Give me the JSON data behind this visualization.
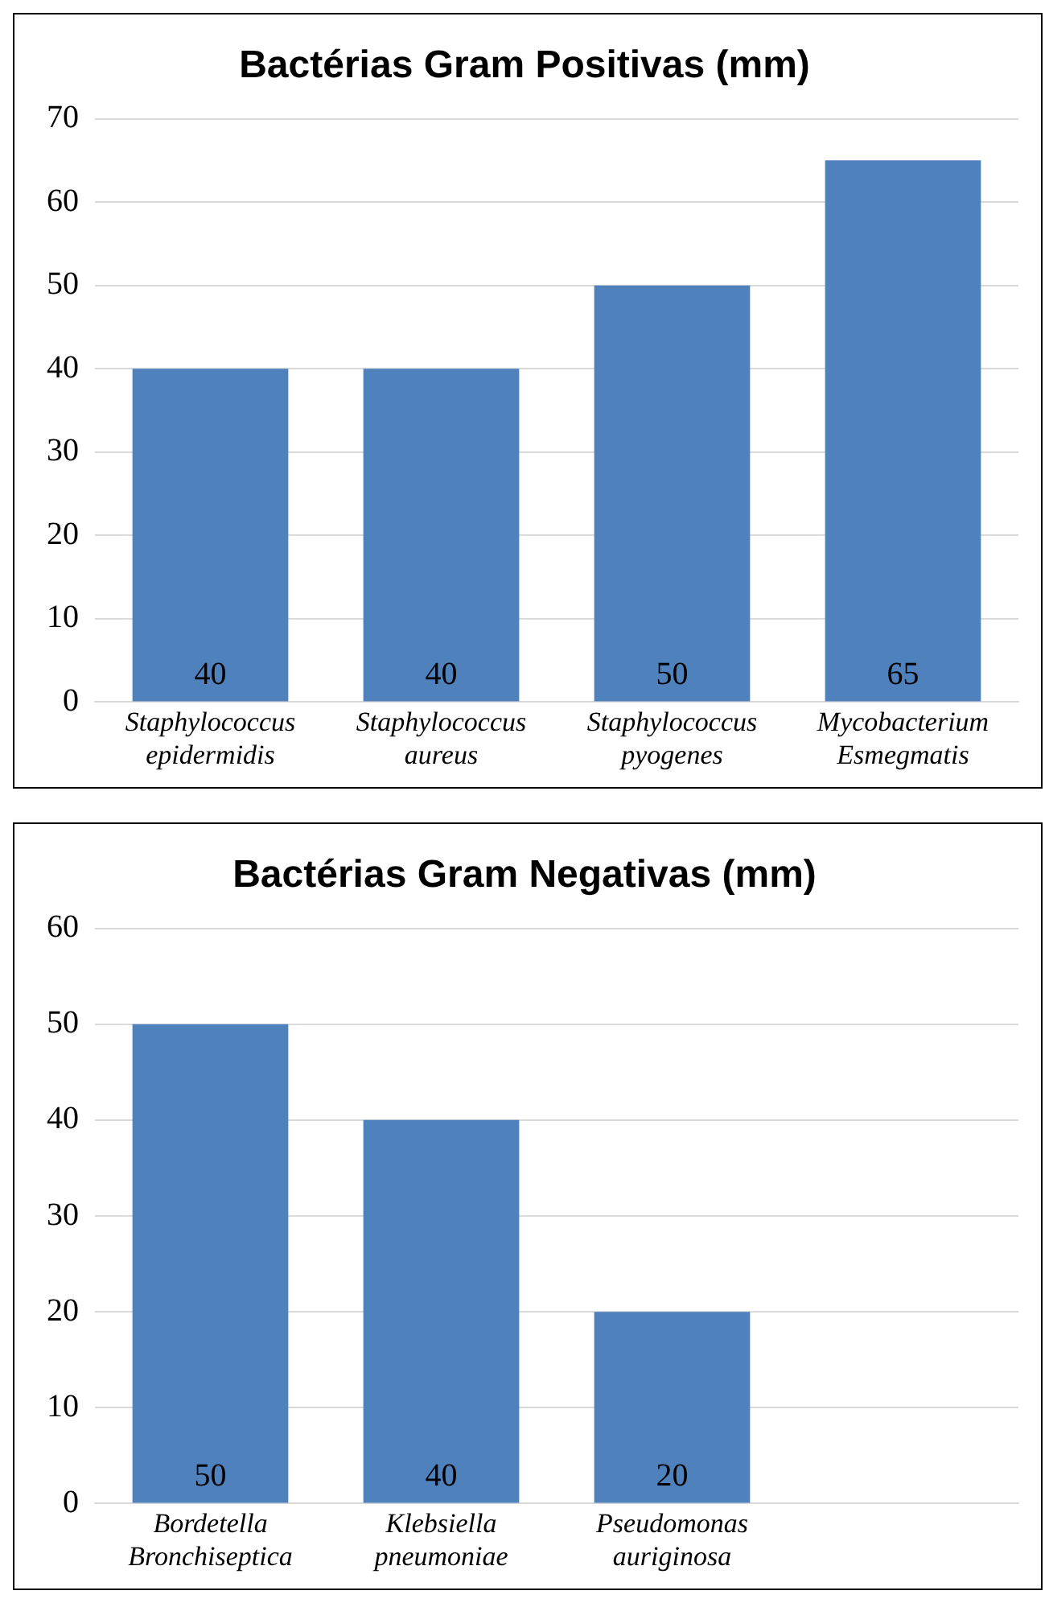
{
  "chart_data": [
    {
      "type": "bar",
      "title": "Bactérias Gram Positivas (mm)",
      "categories": [
        "Staphylococcus epidermidis",
        "Staphylococcus aureus",
        "Staphylococcus pyogenes",
        "Mycobacterium Esmegmatis"
      ],
      "values": [
        40,
        40,
        50,
        65
      ],
      "color": "#4f81bd",
      "ylim": [
        0,
        70
      ],
      "yticks": [
        0,
        10,
        20,
        30,
        40,
        50,
        60,
        70
      ],
      "grid": "y",
      "data_labels": true
    },
    {
      "type": "bar",
      "title": "Bactérias Gram Negativas (mm)",
      "categories": [
        "Bordetella Bronchiseptica",
        "Klebsiella pneumoniae",
        "Pseudomonas auriginosa",
        null
      ],
      "values": [
        50,
        40,
        20,
        null
      ],
      "color": "#4f81bd",
      "ylim": [
        0,
        60
      ],
      "yticks": [
        0,
        10,
        20,
        30,
        40,
        50,
        60
      ],
      "grid": "y",
      "data_labels": true
    }
  ]
}
